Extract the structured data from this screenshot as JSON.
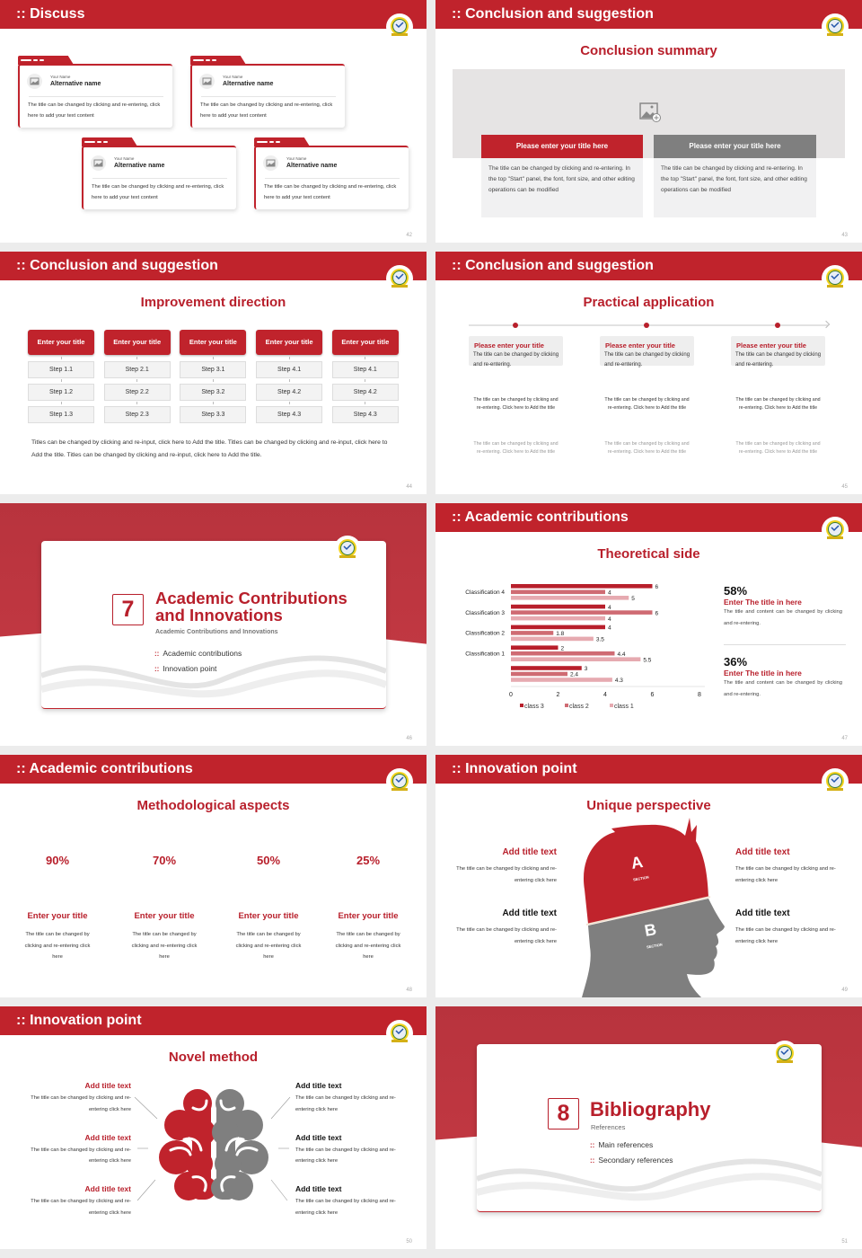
{
  "colors": {
    "primary": "#c0232c",
    "gray": "#7f7f7f",
    "light_gray": "#f1f1f2",
    "class3": "#b81f2b",
    "class2": "#cf6b73",
    "class1": "#e6aab0"
  },
  "slides": {
    "s42": {
      "header": "Discuss",
      "page": "42",
      "cards": [
        {
          "label": "Your Name",
          "name": "Alternative name",
          "text": "The title can be changed by clicking and re-entering, click here to add your text content"
        },
        {
          "label": "Your Name",
          "name": "Alternative name",
          "text": "The title can be changed by clicking and re-entering, click here to add your text content"
        },
        {
          "label": "Your Name",
          "name": "Alternative name",
          "text": "The title can be changed by clicking and re-entering, click here to add your text content"
        },
        {
          "label": "Your Name",
          "name": "Alternative name",
          "text": "The title can be changed by clicking and re-entering, click here to add your text content"
        }
      ]
    },
    "s43": {
      "header": "Conclusion and suggestion",
      "title": "Conclusion summary",
      "page": "43",
      "image_icon": "image-add-icon",
      "boxes": [
        {
          "title": "Please enter your title here",
          "text": "The title can be changed by clicking and re-entering. In the top \"Start\" panel, the font, font size, and other editing operations can be modified"
        },
        {
          "title": "Please enter your title here",
          "text": "The title can be changed by clicking and re-entering. In the top \"Start\" panel, the font, font size, and other editing operations can be modified"
        }
      ]
    },
    "s44": {
      "header": "Conclusion and suggestion",
      "title": "Improvement direction",
      "page": "44",
      "columns": [
        {
          "title": "Enter your title",
          "steps": [
            "Step 1.1",
            "Step 1.2",
            "Step 1.3"
          ]
        },
        {
          "title": "Enter your title",
          "steps": [
            "Step 2.1",
            "Step 2.2",
            "Step 2.3"
          ]
        },
        {
          "title": "Enter your title",
          "steps": [
            "Step 3.1",
            "Step 3.2",
            "Step 3.3"
          ]
        },
        {
          "title": "Enter your title",
          "steps": [
            "Step 4.1",
            "Step 4.2",
            "Step 4.3"
          ]
        },
        {
          "title": "Enter your title",
          "steps": [
            "Step 4.1",
            "Step 4.2",
            "Step 4.3"
          ]
        }
      ],
      "paragraph": "Titles can be changed by clicking and re-input, click here to Add the title. Titles can be changed by clicking and re-input, click here to Add the title. Titles can be changed by clicking and re-input, click here to Add the title."
    },
    "s45": {
      "header": "Conclusion and suggestion",
      "title": "Practical application",
      "page": "45",
      "items": [
        {
          "title": "Please enter your title",
          "text": "The title can be changed by clicking and re-entering.",
          "step1": "The title can be changed by clicking and re-entering. Click here to Add the title",
          "step2": "The title can be changed by clicking and re-entering. Click here to Add the title"
        },
        {
          "title": "Please enter your title",
          "text": "The title can be changed by clicking and re-entering.",
          "step1": "The title can be changed by clicking and re-entering. Click here to Add the title",
          "step2": "The title can be changed by clicking and re-entering. Click here to Add the title"
        },
        {
          "title": "Please enter your title",
          "text": "The title can be changed by clicking and re-entering.",
          "step1": "The title can be changed by clicking and re-entering. Click here to Add the title",
          "step2": "The title can be changed by clicking and re-entering. Click here to Add the title"
        }
      ]
    },
    "s46": {
      "number": "7",
      "title": "Academic Contributions and Innovations",
      "subtitle": "Academic Contributions and Innovations",
      "bullets": [
        "Academic contributions",
        "Innovation point"
      ],
      "page": "46"
    },
    "s47": {
      "header": "Academic contributions",
      "title": "Theoretical side",
      "page": "47",
      "stats": [
        {
          "value": "58%",
          "title": "Enter The title in here",
          "text": "The title and content can be changed by clicking and re-entering."
        },
        {
          "value": "36%",
          "title": "Enter The title in here",
          "text": "The title and content can be changed by clicking and re-entering."
        }
      ]
    },
    "s48": {
      "header": "Academic contributions",
      "title": "Methodological aspects",
      "page": "48",
      "rings": [
        {
          "percent": 90,
          "label": "90%",
          "title": "Enter your title",
          "text": "The title can be changed by clicking and re-entering click here"
        },
        {
          "percent": 70,
          "label": "70%",
          "title": "Enter your title",
          "text": "The title can be changed by clicking and re-entering click here"
        },
        {
          "percent": 50,
          "label": "50%",
          "title": "Enter your title",
          "text": "The title can be changed by clicking and re-entering click here"
        },
        {
          "percent": 25,
          "label": "25%",
          "title": "Enter your title",
          "text": "The title can be changed by clicking and re-entering click here"
        }
      ]
    },
    "s49": {
      "header": "Innovation point",
      "title": "Unique perspective",
      "page": "49",
      "section_a": "A",
      "section_b": "B",
      "section_word": "SECTION",
      "items": [
        {
          "title": "Add title text",
          "text": "The title can be changed by clicking and re-entering click here"
        },
        {
          "title": "Add title text",
          "text": "The title can be changed by clicking and re-entering click here"
        },
        {
          "title": "Add title text",
          "text": "The title can be changed by clicking and re-entering click here"
        },
        {
          "title": "Add title text",
          "text": "The title can be changed by clicking and re-entering click here"
        }
      ]
    },
    "s50": {
      "header": "Innovation point",
      "title": "Novel method",
      "page": "50",
      "left": [
        {
          "title": "Add title text",
          "text": "The title can be changed by clicking and re-entering click here"
        },
        {
          "title": "Add title text",
          "text": "The title can be changed by clicking and re-entering click here"
        },
        {
          "title": "Add title text",
          "text": "The title can be changed by clicking and re-entering click here"
        }
      ],
      "right": [
        {
          "title": "Add title text",
          "text": "The title can be changed by clicking and re-entering click here"
        },
        {
          "title": "Add title text",
          "text": "The title can be changed by clicking and re-entering click here"
        },
        {
          "title": "Add title text",
          "text": "The title can be changed by clicking and re-entering click here"
        }
      ]
    },
    "s51": {
      "number": "8",
      "title": "Bibliography",
      "subtitle": "References",
      "bullets": [
        "Main references",
        "Secondary references"
      ],
      "page": "51"
    }
  },
  "chart_data": {
    "type": "bar",
    "orientation": "horizontal",
    "categories": [
      "Classification 4",
      "Classification 3",
      "Classification 2",
      "Classification 1",
      ""
    ],
    "series": [
      {
        "name": "class 3",
        "values": [
          6,
          4,
          4,
          2,
          3
        ]
      },
      {
        "name": "class 2",
        "values": [
          4,
          6,
          1.8,
          4.4,
          2.4
        ]
      },
      {
        "name": "class 1",
        "values": [
          5,
          4,
          3.5,
          5.5,
          4.3
        ]
      }
    ],
    "xticks": [
      "0",
      "2",
      "4",
      "6",
      "8"
    ],
    "xlim": [
      0,
      8
    ],
    "grid": false,
    "legend": "bottom",
    "data_labels": true
  }
}
